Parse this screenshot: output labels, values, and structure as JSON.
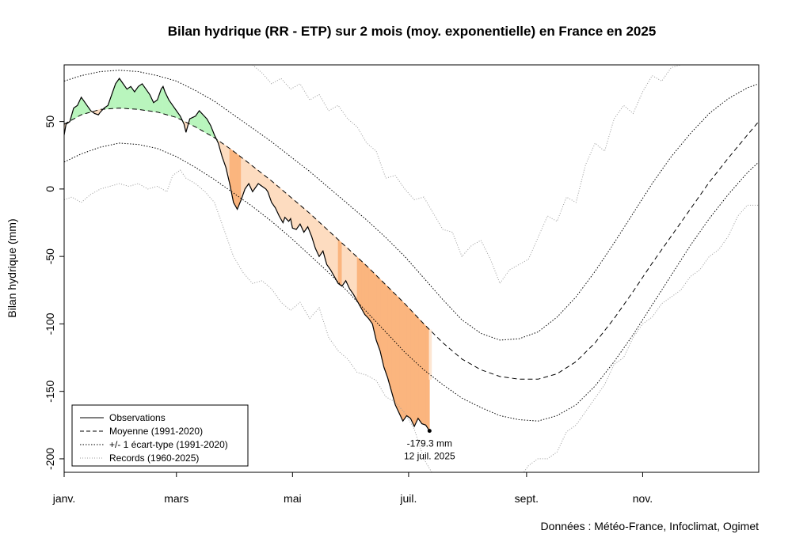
{
  "chart_data": {
    "type": "line",
    "title": "Bilan hydrique (RR - ETP) sur 2 mois (moy. exponentielle) en France en 2025",
    "ylabel": "Bilan hydrique (mm)",
    "xlabel": "",
    "ylim": [
      -210,
      92
    ],
    "xlim": [
      1,
      366
    ],
    "grid": false,
    "legend_position": "bottom-left",
    "y_ticks": [
      50,
      0,
      -50,
      -100,
      -150,
      -200
    ],
    "y_tick_labels": [
      "50",
      "0",
      "-50",
      "-100",
      "-150",
      "-200"
    ],
    "x_ticks": [
      {
        "day": 1,
        "label": "janv."
      },
      {
        "day": 60,
        "label": "mars"
      },
      {
        "day": 121,
        "label": "mai"
      },
      {
        "day": 182,
        "label": "juil."
      },
      {
        "day": 244,
        "label": "sept."
      },
      {
        "day": 305,
        "label": "nov."
      }
    ],
    "colors": {
      "surplus": "#b9f5bd",
      "deficit_light": "#fddcc0",
      "deficit_dark": "#fbb57e",
      "forecast_band": "#fde6d2",
      "line": "#000000",
      "records": "#9a9a9a"
    },
    "legend": [
      {
        "label": "Observations",
        "style": "solid"
      },
      {
        "label": "Moyenne (1991-2020)",
        "style": "dashed"
      },
      {
        "label": "+/- 1 écart-type (1991-2020)",
        "style": "dotted"
      },
      {
        "label": "Records (1960-2025)",
        "style": "records"
      }
    ],
    "annotation": {
      "day": 193,
      "value": -179.3,
      "value_label": "-179.3 mm",
      "date_label": "12 juil. 2025"
    },
    "credit": "Données : Météo-France, Infoclimat, Ogimet",
    "series": {
      "moyenne": {
        "x": [
          1,
          10,
          20,
          30,
          40,
          50,
          60,
          70,
          80,
          90,
          100,
          110,
          120,
          130,
          140,
          150,
          160,
          170,
          180,
          190,
          200,
          210,
          220,
          230,
          240,
          250,
          260,
          270,
          280,
          290,
          300,
          310,
          320,
          330,
          340,
          350,
          360,
          366
        ],
        "y": [
          48,
          55,
          59,
          60,
          59,
          57,
          53,
          46,
          38,
          28,
          17,
          6,
          -6,
          -18,
          -31,
          -44,
          -57,
          -71,
          -85,
          -100,
          -114,
          -126,
          -134,
          -139,
          -141,
          -141,
          -137,
          -128,
          -114,
          -96,
          -76,
          -55,
          -35,
          -15,
          5,
          23,
          40,
          50
        ]
      },
      "sd_upper": {
        "x": [
          1,
          10,
          20,
          30,
          40,
          50,
          60,
          70,
          80,
          90,
          100,
          110,
          120,
          130,
          140,
          150,
          160,
          170,
          180,
          190,
          200,
          210,
          220,
          230,
          240,
          250,
          260,
          270,
          280,
          290,
          300,
          310,
          320,
          330,
          340,
          350,
          360,
          366
        ],
        "y": [
          80,
          84,
          87,
          88,
          87,
          84,
          80,
          73,
          65,
          55,
          45,
          35,
          24,
          13,
          1,
          -11,
          -23,
          -36,
          -50,
          -66,
          -82,
          -97,
          -107,
          -112,
          -111,
          -106,
          -95,
          -80,
          -61,
          -40,
          -18,
          4,
          24,
          41,
          56,
          67,
          75,
          78
        ]
      },
      "sd_lower": {
        "x": [
          1,
          10,
          20,
          30,
          40,
          50,
          60,
          70,
          80,
          90,
          100,
          110,
          120,
          130,
          140,
          150,
          160,
          170,
          180,
          190,
          200,
          210,
          220,
          230,
          240,
          250,
          260,
          270,
          280,
          290,
          300,
          310,
          320,
          330,
          340,
          350,
          360,
          366
        ],
        "y": [
          20,
          26,
          31,
          34,
          33,
          30,
          24,
          16,
          7,
          -3,
          -13,
          -24,
          -36,
          -49,
          -62,
          -76,
          -91,
          -106,
          -121,
          -134,
          -145,
          -155,
          -162,
          -168,
          -171,
          -172,
          -168,
          -160,
          -146,
          -128,
          -108,
          -86,
          -64,
          -42,
          -22,
          -4,
          12,
          20
        ]
      },
      "record_max": {
        "x": [
          100,
          105,
          110,
          115,
          120,
          125,
          130,
          135,
          140,
          145,
          150,
          155,
          160,
          165,
          170,
          175,
          180,
          185,
          190,
          195,
          200,
          205,
          210,
          215,
          220,
          225,
          230,
          235,
          240,
          245,
          250,
          255,
          260,
          265,
          270,
          275,
          280,
          285,
          290,
          295,
          300,
          305,
          310,
          315,
          320,
          325,
          330
        ],
        "y": [
          92,
          86,
          78,
          82,
          74,
          78,
          66,
          70,
          58,
          62,
          52,
          46,
          34,
          28,
          8,
          10,
          0,
          -8,
          -6,
          -18,
          -30,
          -32,
          -50,
          -42,
          -38,
          -52,
          -70,
          -60,
          -56,
          -52,
          -36,
          -20,
          -24,
          -6,
          -10,
          18,
          34,
          28,
          52,
          62,
          56,
          72,
          84,
          80,
          90,
          92,
          94
        ]
      },
      "record_min": {
        "x": [
          1,
          5,
          10,
          15,
          20,
          25,
          30,
          35,
          40,
          45,
          50,
          55,
          58,
          62,
          65,
          70,
          75,
          80,
          85,
          90,
          95,
          100,
          105,
          110,
          115,
          120,
          125,
          130,
          135,
          140,
          145,
          150,
          155,
          160,
          165,
          170,
          175,
          180,
          185,
          190,
          195,
          200,
          205,
          210,
          215,
          220,
          225,
          230,
          235,
          240,
          245,
          250,
          255,
          260,
          265,
          270,
          275,
          280,
          285,
          290,
          295,
          300,
          305,
          310,
          315,
          320,
          325,
          330,
          335,
          340,
          345,
          350,
          355,
          360,
          366
        ],
        "y": [
          -8,
          -6,
          -10,
          -4,
          0,
          2,
          4,
          2,
          4,
          0,
          2,
          -2,
          10,
          14,
          8,
          4,
          -2,
          -10,
          -30,
          -50,
          -62,
          -70,
          -68,
          -74,
          -84,
          -90,
          -84,
          -96,
          -88,
          -110,
          -120,
          -126,
          -136,
          -138,
          -142,
          -154,
          -158,
          -166,
          -178,
          -200,
          -212,
          -220,
          -232,
          -240,
          -245,
          -240,
          -235,
          -225,
          -225,
          -215,
          -205,
          -200,
          -200,
          -195,
          -180,
          -175,
          -165,
          -155,
          -145,
          -130,
          -125,
          -110,
          -100,
          -95,
          -85,
          -80,
          -75,
          -65,
          -60,
          -50,
          -45,
          -35,
          -20,
          -12,
          -12
        ]
      },
      "observations": {
        "x": [
          1,
          2,
          4,
          6,
          8,
          10,
          11,
          13,
          15,
          17,
          19,
          20,
          22,
          24,
          26,
          28,
          30,
          32,
          34,
          36,
          38,
          40,
          42,
          44,
          46,
          48,
          50,
          52,
          53,
          54,
          56,
          58,
          60,
          62,
          64,
          65,
          67,
          70,
          72,
          74,
          76,
          78,
          80,
          82,
          84,
          86,
          88,
          90,
          92,
          94,
          96,
          97,
          98,
          100,
          102,
          103,
          105,
          107,
          108,
          110,
          112,
          114,
          116,
          117,
          119,
          120,
          121,
          123,
          125,
          127,
          129,
          131,
          133,
          135,
          137,
          139,
          141,
          143,
          145,
          147,
          149,
          151,
          153,
          155,
          157,
          159,
          161,
          163,
          165,
          167,
          169,
          171,
          173,
          175,
          177,
          179,
          181,
          183,
          185,
          187,
          189,
          191,
          193
        ],
        "y": [
          40,
          48,
          50,
          60,
          62,
          68,
          66,
          62,
          58,
          56,
          55,
          57,
          60,
          62,
          70,
          78,
          82,
          78,
          74,
          76,
          72,
          76,
          78,
          74,
          70,
          64,
          66,
          74,
          76,
          72,
          66,
          62,
          58,
          54,
          48,
          42,
          52,
          54,
          58,
          55,
          52,
          47,
          40,
          34,
          24,
          16,
          4,
          -10,
          -15,
          -8,
          0,
          2,
          4,
          -2,
          2,
          4,
          2,
          0,
          -2,
          -10,
          -14,
          -20,
          -25,
          -21,
          -24,
          -22,
          -29,
          -30,
          -26,
          -32,
          -28,
          -35,
          -44,
          -50,
          -46,
          -56,
          -60,
          -65,
          -70,
          -72,
          -68,
          -74,
          -78,
          -83,
          -88,
          -93,
          -96,
          -100,
          -112,
          -120,
          -132,
          -140,
          -150,
          -160,
          -166,
          -172,
          -168,
          -170,
          -176,
          -170,
          -174,
          -175,
          -179.3
        ]
      }
    }
  }
}
